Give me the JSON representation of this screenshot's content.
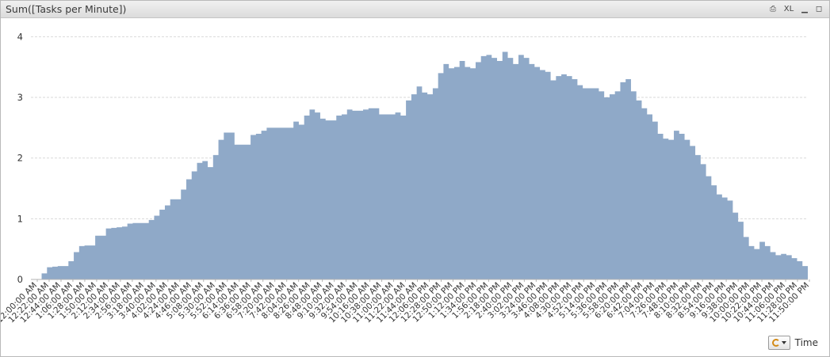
{
  "window": {
    "title": "Sum([Tasks per Minute])",
    "icons": [
      {
        "name": "print-icon",
        "glyph": "⎙"
      },
      {
        "name": "excel-icon",
        "glyph": "XL"
      },
      {
        "name": "minimize-icon",
        "glyph": "▁"
      },
      {
        "name": "maximize-icon",
        "glyph": "◻"
      }
    ]
  },
  "footer": {
    "cycle_icon": "cycle-group-icon",
    "dimension_label": "Time"
  },
  "colors": {
    "area_fill": "#8fa9c8",
    "grid": "#d9d9d9",
    "axis": "#b3b3b3"
  },
  "chart_data": {
    "type": "area",
    "title": "Sum([Tasks per Minute])",
    "xlabel": "Time",
    "ylabel": "",
    "ylim": [
      0,
      4.2
    ],
    "yticks": [
      0,
      1,
      2,
      3,
      4
    ],
    "grid": true,
    "x_tick_labels": [
      "12:00:00 AM",
      "12:22:00 AM",
      "12:44:00 AM",
      "1:06:00 AM",
      "1:28:00 AM",
      "1:50:00 AM",
      "2:12:00 AM",
      "2:34:00 AM",
      "2:56:00 AM",
      "3:18:00 AM",
      "3:40:00 AM",
      "4:02:00 AM",
      "4:24:00 AM",
      "4:46:00 AM",
      "5:08:00 AM",
      "5:30:00 AM",
      "5:52:00 AM",
      "6:14:00 AM",
      "6:36:00 AM",
      "6:58:00 AM",
      "7:20:00 AM",
      "7:42:00 AM",
      "8:04:00 AM",
      "8:26:00 AM",
      "8:48:00 AM",
      "9:10:00 AM",
      "9:32:00 AM",
      "9:54:00 AM",
      "10:16:00 AM",
      "10:38:00 AM",
      "11:00:00 AM",
      "11:22:00 AM",
      "11:44:00 AM",
      "12:06:00 PM",
      "12:28:00 PM",
      "12:50:00 PM",
      "1:12:00 PM",
      "1:34:00 PM",
      "1:56:00 PM",
      "2:18:00 PM",
      "2:40:00 PM",
      "3:02:00 PM",
      "3:24:00 PM",
      "3:46:00 PM",
      "4:08:00 PM",
      "4:30:00 PM",
      "4:52:00 PM",
      "5:14:00 PM",
      "5:36:00 PM",
      "5:58:00 PM",
      "6:20:00 PM",
      "6:42:00 PM",
      "7:04:00 PM",
      "7:26:00 PM",
      "7:48:00 PM",
      "8:10:00 PM",
      "8:32:00 PM",
      "8:54:00 PM",
      "9:16:00 PM",
      "9:38:00 PM",
      "10:00:00 PM",
      "10:22:00 PM",
      "10:44:00 PM",
      "11:06:00 PM",
      "11:28:00 PM",
      "11:50:00 PM"
    ],
    "series": [
      {
        "values": [
          0.0,
          0.0,
          0.1,
          0.2,
          0.21,
          0.22,
          0.22,
          0.3,
          0.45,
          0.55,
          0.56,
          0.56,
          0.72,
          0.72,
          0.84,
          0.85,
          0.86,
          0.87,
          0.92,
          0.93,
          0.93,
          0.93,
          0.98,
          1.05,
          1.15,
          1.22,
          1.32,
          1.32,
          1.48,
          1.65,
          1.78,
          1.92,
          1.95,
          1.85,
          2.05,
          2.3,
          2.42,
          2.42,
          2.22,
          2.22,
          2.22,
          2.38,
          2.4,
          2.45,
          2.5,
          2.5,
          2.5,
          2.5,
          2.5,
          2.6,
          2.55,
          2.7,
          2.8,
          2.75,
          2.65,
          2.62,
          2.62,
          2.7,
          2.72,
          2.8,
          2.78,
          2.78,
          2.8,
          2.82,
          2.82,
          2.72,
          2.72,
          2.72,
          2.75,
          2.7,
          2.95,
          3.05,
          3.18,
          3.08,
          3.05,
          3.15,
          3.4,
          3.55,
          3.48,
          3.5,
          3.6,
          3.5,
          3.48,
          3.58,
          3.68,
          3.7,
          3.65,
          3.6,
          3.75,
          3.65,
          3.55,
          3.7,
          3.65,
          3.55,
          3.5,
          3.45,
          3.42,
          3.28,
          3.35,
          3.38,
          3.35,
          3.3,
          3.2,
          3.15,
          3.15,
          3.15,
          3.1,
          3.0,
          3.05,
          3.1,
          3.25,
          3.3,
          3.1,
          2.95,
          2.82,
          2.72,
          2.6,
          2.4,
          2.32,
          2.3,
          2.45,
          2.4,
          2.3,
          2.2,
          2.05,
          1.9,
          1.7,
          1.55,
          1.4,
          1.35,
          1.3,
          1.1,
          0.95,
          0.7,
          0.55,
          0.5,
          0.62,
          0.55,
          0.45,
          0.4,
          0.42,
          0.4,
          0.35,
          0.3,
          0.22
        ]
      }
    ]
  }
}
